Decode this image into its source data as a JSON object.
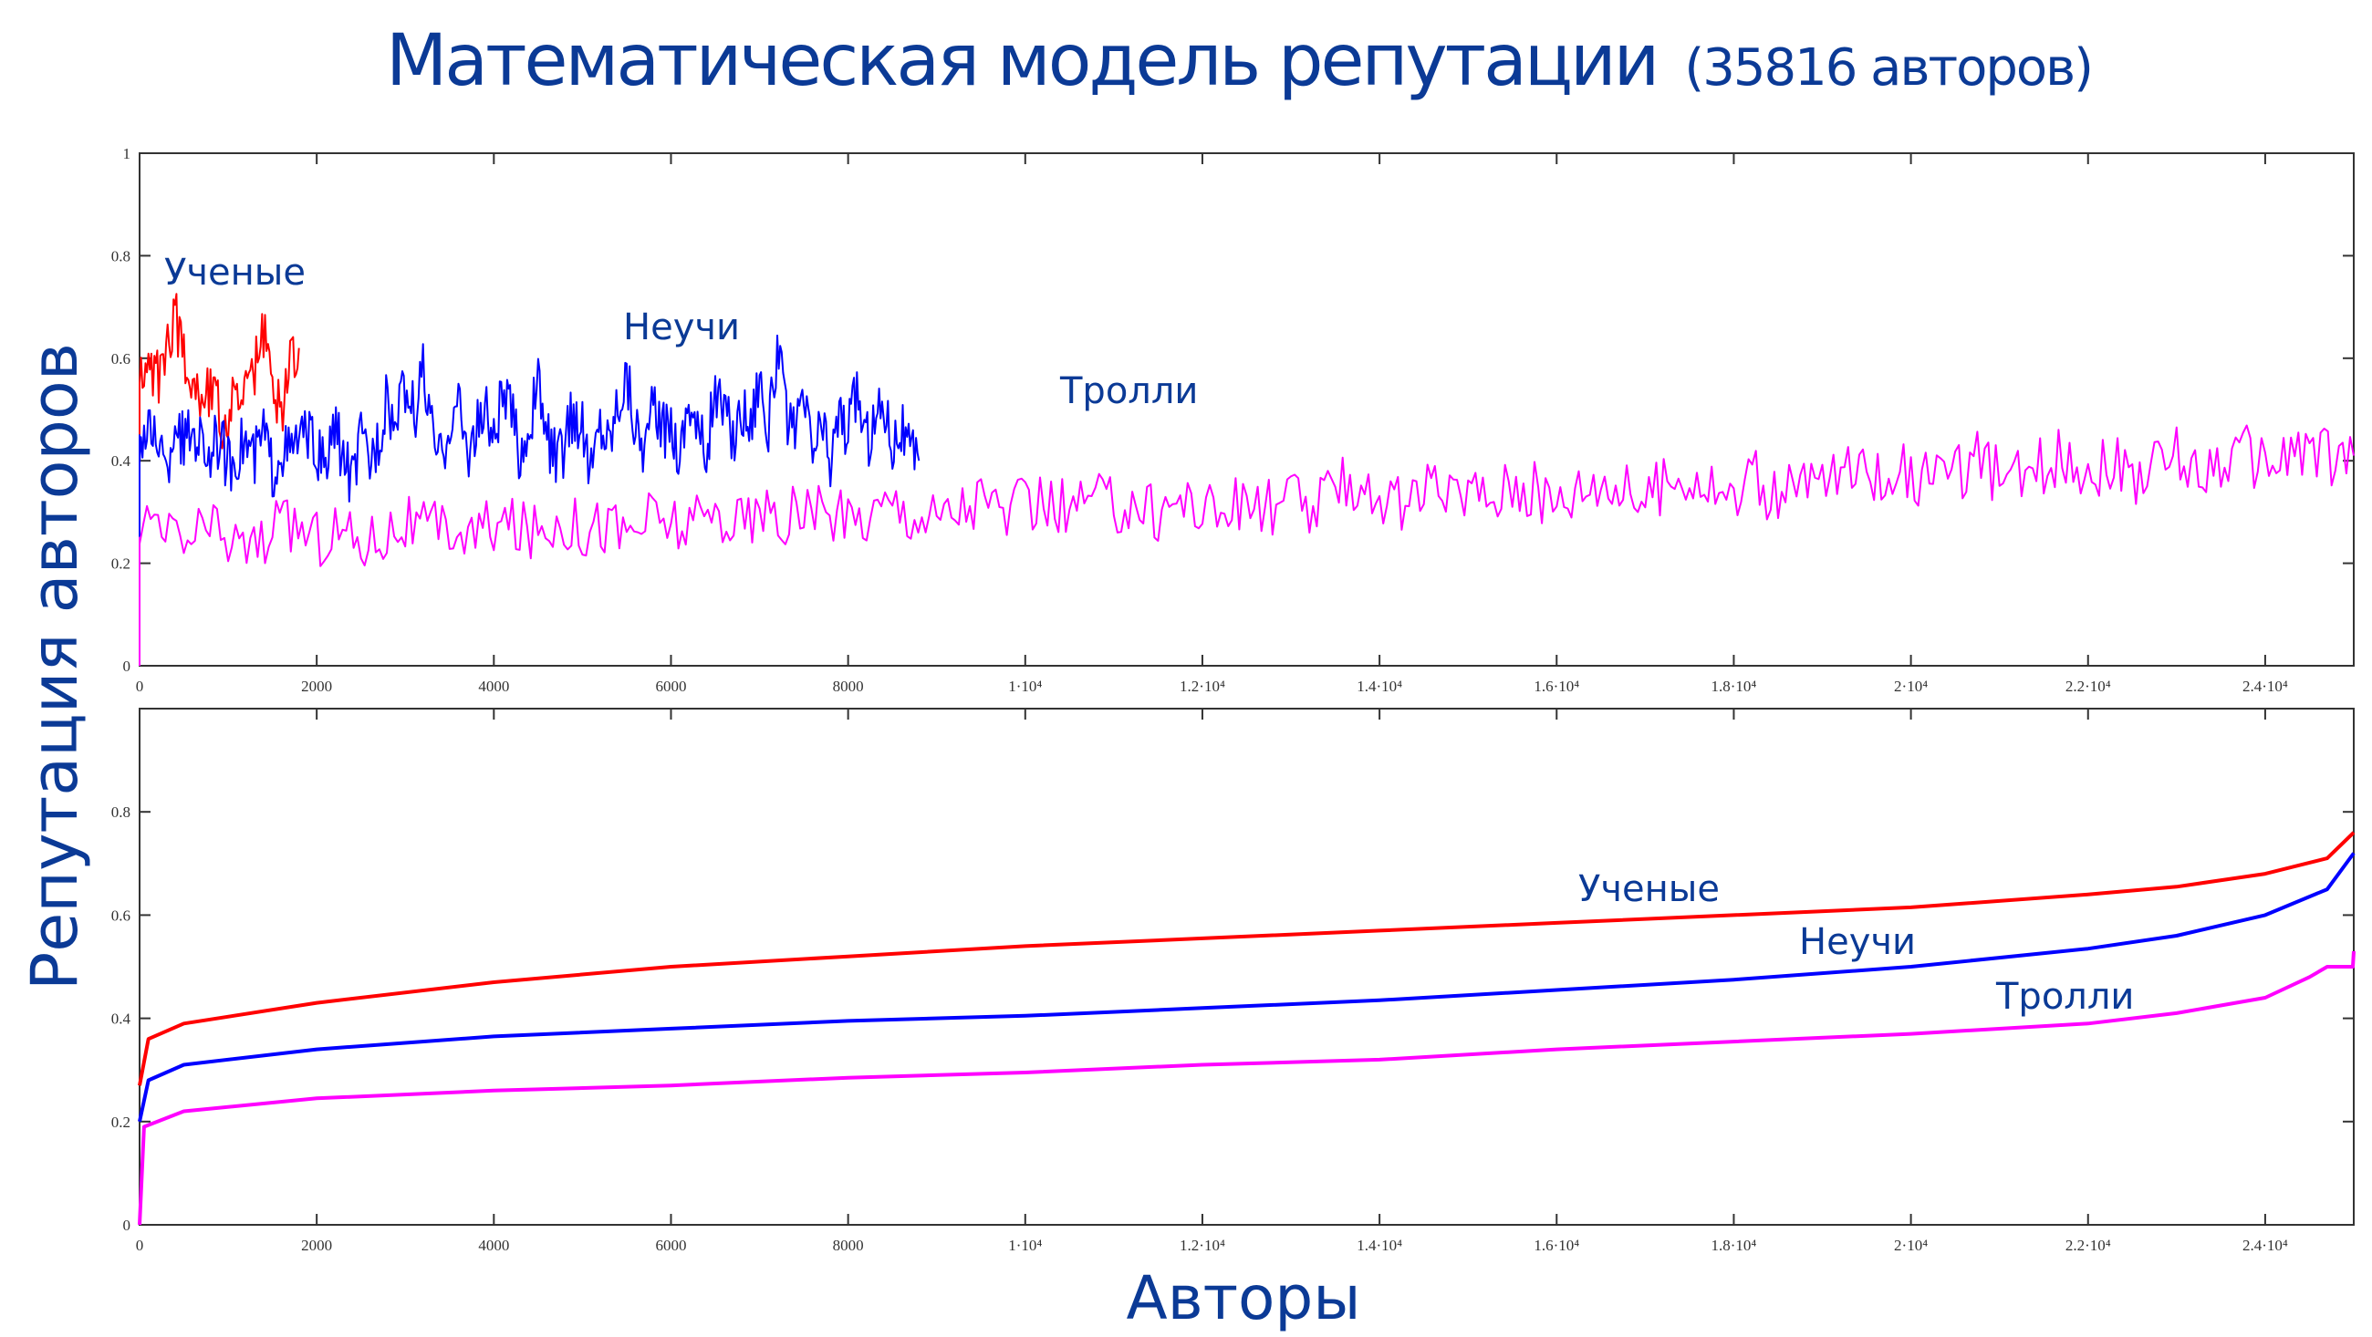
{
  "title": "Математическая модель репутации",
  "subtitle": "(35816 авторов)",
  "colors": {
    "text": "#0b3a96",
    "scientists": "#ff0000",
    "ignorants": "#0000ff",
    "trolls": "#ff00ff"
  },
  "chart_data": [
    {
      "type": "line",
      "panel": "top",
      "ylabel": "Репутация  авторов",
      "xlim": [
        0,
        25000
      ],
      "ylim": [
        0,
        1
      ],
      "xticks": [
        0,
        2000,
        4000,
        6000,
        8000,
        10000,
        12000,
        14000,
        16000,
        18000,
        20000,
        22000,
        24000
      ],
      "xtick_labels": [
        "0",
        "2000",
        "4000",
        "6000",
        "8000",
        "1·10⁴",
        "1.2·10⁴",
        "1.4·10⁴",
        "1.6·10⁴",
        "1.8·10⁴",
        "2·10⁴",
        "2.2·10⁴",
        "2.4·10⁴"
      ],
      "yticks": [
        0,
        0.2,
        0.4,
        0.6,
        0.8,
        1
      ],
      "ytick_labels": [
        "0",
        "0.2",
        "0.4",
        "0.6",
        "0.8",
        "1"
      ],
      "grid": false,
      "series": [
        {
          "name": "Ученые",
          "color": "#ff0000",
          "x_start": 0,
          "x_step": 100,
          "values": [
            0.55,
            0.58,
            0.56,
            0.63,
            0.68,
            0.6,
            0.57,
            0.52,
            0.55,
            0.49,
            0.46,
            0.55,
            0.52,
            0.58,
            0.64,
            0.55,
            0.49,
            0.6,
            0.62
          ]
        },
        {
          "name": "Неучи",
          "color": "#0000ff",
          "x_start": 0,
          "x_step": 100,
          "values": [
            0.45,
            0.44,
            0.46,
            0.36,
            0.48,
            0.43,
            0.46,
            0.44,
            0.41,
            0.45,
            0.39,
            0.42,
            0.44,
            0.4,
            0.46,
            0.38,
            0.43,
            0.41,
            0.45,
            0.44,
            0.42,
            0.38,
            0.47,
            0.41,
            0.36,
            0.44,
            0.4,
            0.45,
            0.52,
            0.46,
            0.55,
            0.49,
            0.58,
            0.45,
            0.4,
            0.48,
            0.51,
            0.42,
            0.46,
            0.5,
            0.44,
            0.53,
            0.49,
            0.41,
            0.47,
            0.55,
            0.45,
            0.4,
            0.43,
            0.5,
            0.46,
            0.38,
            0.48,
            0.44,
            0.52,
            0.57,
            0.47,
            0.43,
            0.5,
            0.45,
            0.48,
            0.41,
            0.53,
            0.46,
            0.42,
            0.54,
            0.49,
            0.44,
            0.51,
            0.47,
            0.58,
            0.45,
            0.63,
            0.49,
            0.44,
            0.52,
            0.42,
            0.47,
            0.4,
            0.5,
            0.45,
            0.55,
            0.43,
            0.48,
            0.52,
            0.44,
            0.47,
            0.41,
            0.4
          ]
        },
        {
          "name": "Тролли",
          "color": "#ff00ff",
          "x_start": 0,
          "x_step": 250,
          "values": [
            0.25,
            0.26,
            0.24,
            0.27,
            0.25,
            0.23,
            0.26,
            0.28,
            0.25,
            0.27,
            0.24,
            0.26,
            0.28,
            0.26,
            0.27,
            0.25,
            0.28,
            0.27,
            0.26,
            0.29,
            0.27,
            0.28,
            0.26,
            0.29,
            0.28,
            0.27,
            0.3,
            0.28,
            0.29,
            0.27,
            0.31,
            0.29,
            0.28,
            0.3,
            0.32,
            0.3,
            0.29,
            0.31,
            0.33,
            0.3,
            0.31,
            0.32,
            0.3,
            0.33,
            0.31,
            0.32,
            0.3,
            0.33,
            0.31,
            0.3,
            0.32,
            0.31,
            0.33,
            0.3,
            0.34,
            0.36,
            0.33,
            0.31,
            0.34,
            0.32,
            0.35,
            0.33,
            0.36,
            0.34,
            0.32,
            0.35,
            0.37,
            0.34,
            0.33,
            0.36,
            0.38,
            0.35,
            0.33,
            0.36,
            0.32,
            0.35,
            0.37,
            0.38,
            0.36,
            0.39,
            0.37,
            0.35,
            0.38,
            0.4,
            0.37,
            0.36,
            0.39,
            0.41,
            0.38,
            0.4,
            0.37,
            0.39,
            0.41,
            0.38,
            0.4,
            0.42,
            0.39,
            0.41,
            0.43,
            0.4,
            0.41
          ]
        }
      ],
      "annotations": [
        "Ученые",
        "Неучи",
        "Тролли"
      ]
    },
    {
      "type": "line",
      "panel": "bottom",
      "xlabel": "Авторы",
      "xlim": [
        0,
        25000
      ],
      "ylim": [
        0,
        1
      ],
      "xticks": [
        0,
        2000,
        4000,
        6000,
        8000,
        10000,
        12000,
        14000,
        16000,
        18000,
        20000,
        22000,
        24000
      ],
      "xtick_labels": [
        "0",
        "2000",
        "4000",
        "6000",
        "8000",
        "1·10⁴",
        "1.2·10⁴",
        "1.4·10⁴",
        "1.6·10⁴",
        "1.8·10⁴",
        "2·10⁴",
        "2.2·10⁴",
        "2.4·10⁴"
      ],
      "yticks": [
        0,
        0.2,
        0.4,
        0.6,
        0.8,
        1
      ],
      "ytick_labels": [
        "0",
        "0.2",
        "0.4",
        "0.6",
        "0.8",
        ""
      ],
      "grid": false,
      "series": [
        {
          "name": "Ученые",
          "color": "#ff0000",
          "x": [
            0,
            100,
            500,
            2000,
            4000,
            6000,
            8000,
            10000,
            12000,
            14000,
            16000,
            18000,
            20000,
            22000,
            23000,
            24000,
            24700,
            25000
          ],
          "y": [
            0.27,
            0.36,
            0.39,
            0.43,
            0.47,
            0.5,
            0.52,
            0.54,
            0.555,
            0.57,
            0.585,
            0.6,
            0.615,
            0.64,
            0.655,
            0.68,
            0.71,
            0.76
          ]
        },
        {
          "name": "Неучи",
          "color": "#0000ff",
          "x": [
            0,
            100,
            500,
            2000,
            4000,
            6000,
            8000,
            10000,
            12000,
            14000,
            16000,
            18000,
            20000,
            22000,
            23000,
            24000,
            24700,
            25000
          ],
          "y": [
            0.2,
            0.28,
            0.31,
            0.34,
            0.365,
            0.38,
            0.395,
            0.405,
            0.42,
            0.435,
            0.455,
            0.475,
            0.5,
            0.535,
            0.56,
            0.6,
            0.65,
            0.72
          ]
        },
        {
          "name": "Тролли",
          "color": "#ff00ff",
          "x": [
            0,
            50,
            500,
            2000,
            4000,
            6000,
            8000,
            10000,
            12000,
            14000,
            16000,
            18000,
            20000,
            22000,
            23000,
            24000,
            24500,
            24700,
            24990,
            25000
          ],
          "y": [
            0,
            0.19,
            0.22,
            0.245,
            0.26,
            0.27,
            0.285,
            0.295,
            0.31,
            0.32,
            0.34,
            0.355,
            0.37,
            0.39,
            0.41,
            0.44,
            0.48,
            0.5,
            0.5,
            0.53
          ]
        }
      ],
      "annotations": [
        "Ученые",
        "Неучи",
        "Тролли"
      ]
    }
  ]
}
